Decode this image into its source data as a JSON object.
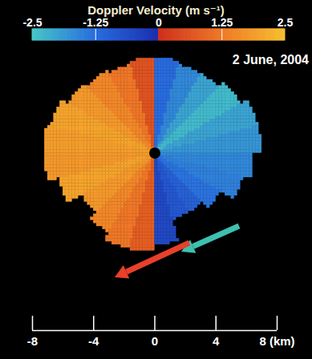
{
  "chart_data": {
    "type": "radar_ppi",
    "title": "Doppler Velocity (m s⁻¹)",
    "annotations": [
      "2 June, 2004"
    ],
    "colorbar": {
      "range": [
        -2.5,
        2.5
      ],
      "ticks": [
        -2.5,
        -1.25,
        0,
        1.25,
        2.5
      ]
    },
    "xlim": [
      -8,
      8
    ],
    "ylim": [
      -8,
      8
    ],
    "xticks": [
      -8,
      -4,
      0,
      4,
      {
        "value": 8,
        "label": "8 (km)"
      }
    ],
    "tick_labels": "x",
    "azimuth_bins": [
      0,
      15,
      30,
      45,
      60,
      75,
      90,
      105,
      120,
      135,
      150,
      165,
      180,
      195,
      210,
      225,
      240,
      255,
      270,
      285,
      300,
      315,
      330,
      345,
      360
    ],
    "ranges": [
      6.2,
      6.0,
      6.0,
      6.5,
      7.0,
      7.0,
      6.5,
      6.0,
      5.0,
      4.5,
      4.5,
      6.0,
      6.5,
      6.5,
      6.0,
      5.5,
      6.5,
      7.2,
      7.3,
      7.0,
      6.5,
      6.2,
      6.0,
      6.2
    ],
    "values": [
      -1.2,
      -1.6,
      -2.0,
      -2.3,
      -2.0,
      -1.8,
      -1.6,
      -1.5,
      -1.3,
      -1.0,
      -0.8,
      -0.5,
      0.8,
      1.2,
      1.5,
      1.8,
      2.0,
      1.8,
      1.9,
      2.0,
      1.8,
      1.5,
      1.2,
      0.6
    ]
  }
}
